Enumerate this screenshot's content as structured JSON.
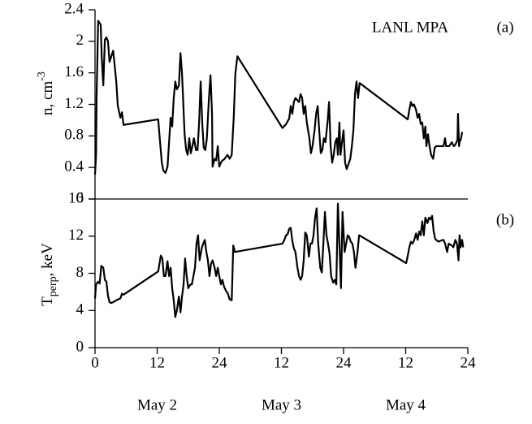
{
  "chart_data": [
    {
      "type": "line",
      "title": "LANL MPA",
      "panel_label": "(a)",
      "ylabel": {
        "text": "n, cm",
        "superscript": "-3"
      },
      "xlim": [
        0,
        72
      ],
      "ylim": [
        0,
        2.4
      ],
      "yticks": [
        0,
        0.4,
        0.8,
        1.2,
        1.6,
        2,
        2.4
      ],
      "color": "#000000",
      "x": [
        0,
        0.2,
        0.3,
        0.6,
        0.9,
        1.1,
        1.3,
        1.6,
        1.9,
        2.2,
        2.5,
        2.8,
        3.1,
        3.5,
        3.8,
        4.1,
        4.4,
        4.9,
        5.2,
        5.5,
        12.2,
        12.5,
        12.9,
        13.2,
        13.6,
        14.0,
        14.3,
        14.6,
        14.9,
        15.2,
        15.5,
        15.8,
        16.2,
        16.5,
        16.8,
        17.3,
        17.6,
        17.9,
        18.2,
        18.5,
        18.8,
        19.1,
        19.5,
        19.8,
        20.1,
        20.4,
        20.7,
        21.0,
        21.3,
        21.6,
        22.0,
        22.3,
        22.6,
        22.7,
        23.1,
        23.4,
        23.7,
        24.0,
        24.3,
        24.6,
        24.9,
        25.6,
        26.0,
        26.4,
        26.8,
        27.1,
        27.5,
        36.2,
        36.9,
        37.5,
        37.8,
        38.1,
        38.4,
        38.7,
        39.4,
        39.7,
        40.0,
        40.3,
        40.6,
        40.9,
        41.4,
        41.7,
        42.0,
        42.4,
        42.7,
        43.0,
        43.3,
        43.6,
        43.9,
        44.2,
        44.5,
        44.9,
        45.2,
        45.5,
        45.8,
        46.1,
        46.4,
        46.7,
        46.9,
        47.2,
        47.4,
        47.7,
        48.0,
        48.3,
        48.6,
        49.3,
        49.6,
        49.9,
        50.2,
        50.5,
        50.8,
        51.1,
        60.4,
        60.7,
        61.0,
        61.3,
        61.6,
        62.0,
        62.3,
        62.6,
        62.9,
        63.2,
        63.5,
        63.8,
        64.0,
        64.3,
        64.6,
        64.9,
        65.3,
        65.6,
        65.9,
        66.7,
        67.3,
        67.6,
        67.8,
        68.4,
        68.9,
        69.3,
        69.6,
        70.0,
        70.1,
        70.3,
        70.4,
        70.7,
        70.9
      ],
      "values": [
        0.31,
        0.56,
        1.28,
        2.26,
        2.23,
        2.21,
        1.79,
        1.44,
        2.02,
        2.05,
        2.0,
        1.74,
        1.8,
        1.88,
        1.69,
        1.49,
        1.18,
        1.03,
        1.1,
        0.94,
        1.01,
        0.77,
        0.46,
        0.36,
        0.33,
        0.41,
        0.72,
        1.03,
        0.92,
        1.28,
        1.49,
        1.39,
        1.44,
        1.85,
        1.59,
        0.82,
        0.62,
        0.56,
        0.77,
        0.58,
        0.67,
        0.77,
        0.62,
        0.62,
        0.97,
        1.49,
        0.97,
        0.65,
        0.62,
        0.77,
        1.28,
        1.57,
        1.08,
        0.41,
        0.51,
        0.49,
        0.67,
        0.41,
        0.46,
        0.49,
        0.5,
        0.56,
        0.51,
        0.56,
        1.05,
        1.59,
        1.81,
        0.9,
        0.95,
        1.02,
        1.18,
        1.08,
        1.23,
        1.28,
        1.23,
        1.33,
        1.28,
        1.08,
        1.18,
        0.97,
        0.77,
        0.58,
        0.67,
        0.87,
        1.08,
        1.18,
        0.87,
        0.58,
        0.62,
        0.77,
        0.72,
        0.97,
        1.23,
        0.67,
        0.46,
        0.56,
        0.72,
        0.77,
        0.56,
        0.97,
        0.56,
        0.72,
        0.87,
        0.46,
        0.38,
        0.51,
        0.67,
        0.87,
        1.33,
        1.49,
        1.28,
        1.47,
        1.01,
        1.13,
        1.23,
        1.18,
        1.2,
        1.13,
        1.03,
        1.08,
        0.95,
        0.97,
        0.77,
        0.92,
        0.67,
        0.82,
        0.67,
        0.56,
        0.51,
        0.65,
        0.67,
        0.67,
        0.67,
        0.77,
        0.67,
        0.67,
        0.72,
        0.67,
        0.69,
        0.75,
        1.08,
        0.67,
        0.72,
        0.77,
        0.85
      ]
    },
    {
      "type": "line",
      "panel_label": "(b)",
      "ylabel": {
        "text": "T",
        "subscript": "perp",
        "suffix": ", keV"
      },
      "xlim": [
        0,
        72
      ],
      "ylim": [
        0,
        16
      ],
      "yticks": [
        0,
        4,
        8,
        12,
        16
      ],
      "color": "#000000",
      "xticks": [
        0,
        12,
        24,
        {
          "value": 36,
          "label": "12"
        },
        {
          "value": 48,
          "label": "24"
        },
        {
          "value": 60,
          "label": "12"
        },
        {
          "value": 72,
          "label": "24"
        }
      ],
      "day_labels": [
        {
          "value": 12,
          "label": "May 2"
        },
        {
          "value": 36,
          "label": "May 3"
        },
        {
          "value": 60,
          "label": "May 4"
        }
      ],
      "x": [
        0,
        0.2,
        0.6,
        0.9,
        1.2,
        1.6,
        1.9,
        2.2,
        2.5,
        2.8,
        3.1,
        3.5,
        4.1,
        4.9,
        5.2,
        5.5,
        12.2,
        12.7,
        13.0,
        13.3,
        13.6,
        14.0,
        14.3,
        14.6,
        14.9,
        15.2,
        15.5,
        15.8,
        16.2,
        16.5,
        16.8,
        17.1,
        17.4,
        17.7,
        18.0,
        18.4,
        18.7,
        19.0,
        19.3,
        19.6,
        19.9,
        20.2,
        20.6,
        20.9,
        21.2,
        21.5,
        21.8,
        22.1,
        22.4,
        22.7,
        23.1,
        23.4,
        23.7,
        24.0,
        24.3,
        24.6,
        24.9,
        25.3,
        25.6,
        26.0,
        26.4,
        26.7,
        27.0,
        36.2,
        36.5,
        36.9,
        37.2,
        37.5,
        37.8,
        38.1,
        38.4,
        38.7,
        39.1,
        39.4,
        39.7,
        40.0,
        40.3,
        40.6,
        40.9,
        41.3,
        41.6,
        41.9,
        42.2,
        42.5,
        42.8,
        43.1,
        43.5,
        43.8,
        44.1,
        44.4,
        44.7,
        45.0,
        45.3,
        45.6,
        46.0,
        46.3,
        46.6,
        46.9,
        47.2,
        47.5,
        47.8,
        48.2,
        48.5,
        48.8,
        49.1,
        49.4,
        49.7,
        50.0,
        50.3,
        50.7,
        51.0,
        60.1,
        60.4,
        60.7,
        61.0,
        61.3,
        61.6,
        62.0,
        62.3,
        62.6,
        62.9,
        63.2,
        63.5,
        63.8,
        64.2,
        64.5,
        64.8,
        65.1,
        65.4,
        65.7,
        66.1,
        66.4,
        66.7,
        67.3,
        67.6,
        68.0,
        68.3,
        68.9,
        69.2,
        69.6,
        69.9,
        70.2,
        70.4,
        70.6,
        70.9,
        71.1
      ],
      "values": [
        5.3,
        6.8,
        7.1,
        6.9,
        8.8,
        8.6,
        7.3,
        7.1,
        5.6,
        4.9,
        4.8,
        4.9,
        5.1,
        5.3,
        5.8,
        5.7,
        8.2,
        9.9,
        9.6,
        7.7,
        7.7,
        9.3,
        7.7,
        8.6,
        6.4,
        5.1,
        3.3,
        4.0,
        5.5,
        3.8,
        5.5,
        6.8,
        9.6,
        7.7,
        6.4,
        6.8,
        6.8,
        7.7,
        8.6,
        11.2,
        12.1,
        9.4,
        10.7,
        11.2,
        11.6,
        10.3,
        9.4,
        7.7,
        9.0,
        9.4,
        8.6,
        7.7,
        8.6,
        7.7,
        6.8,
        7.3,
        6.6,
        6.1,
        5.9,
        5.2,
        5.1,
        11.0,
        10.3,
        11.2,
        11.5,
        12.1,
        12.2,
        12.8,
        12.9,
        11.5,
        10.7,
        10.3,
        8.6,
        7.7,
        7.3,
        7.7,
        9.4,
        12.4,
        12.1,
        9.8,
        11.2,
        11.2,
        12.1,
        14.0,
        15.0,
        11.2,
        8.6,
        8.1,
        11.2,
        14.6,
        12.1,
        11.2,
        10.1,
        7.7,
        7.0,
        7.3,
        6.8,
        15.5,
        11.2,
        6.4,
        14.6,
        10.3,
        11.2,
        12.1,
        11.9,
        11.4,
        11.2,
        10.3,
        8.6,
        10.3,
        12.1,
        9.1,
        9.9,
        10.8,
        11.4,
        11.2,
        11.5,
        12.3,
        11.6,
        12.5,
        12.1,
        13.6,
        12.1,
        14.0,
        13.4,
        14.0,
        13.8,
        14.2,
        12.5,
        11.7,
        11.5,
        11.4,
        11.5,
        11.6,
        11.2,
        10.3,
        11.2,
        11.0,
        10.8,
        11.6,
        11.2,
        9.4,
        12.1,
        10.8,
        11.6,
        10.8
      ]
    }
  ]
}
